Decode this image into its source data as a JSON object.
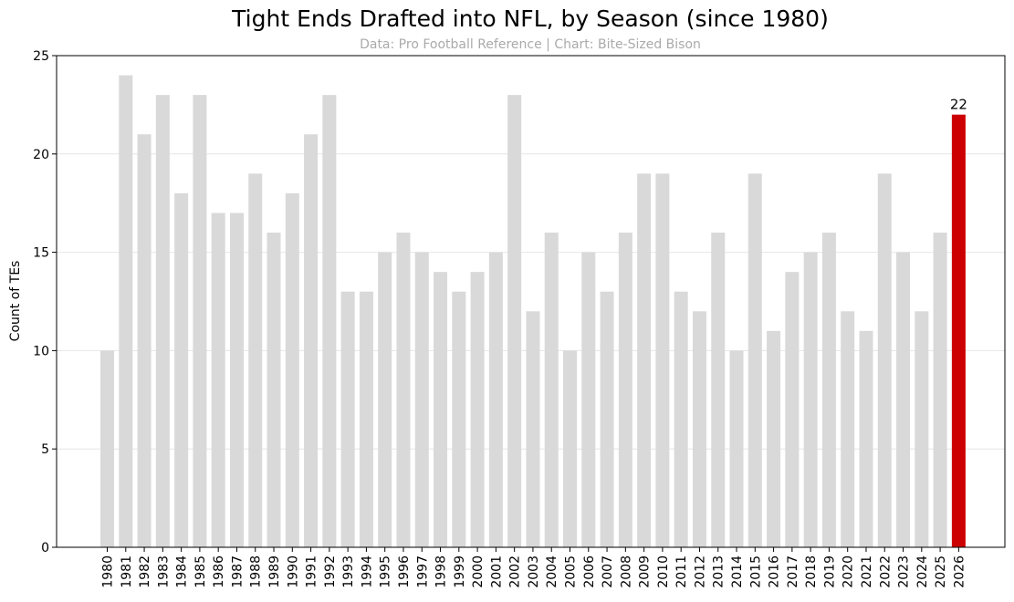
{
  "chart_data": {
    "type": "bar",
    "title": "Tight Ends Drafted into NFL, by Season (since 1980)",
    "subtitle": "Data: Pro Football Reference | Chart: Bite-Sized Bison",
    "xlabel": "",
    "ylabel": "Count of TEs",
    "categories": [
      "1980",
      "1981",
      "1982",
      "1983",
      "1984",
      "1985",
      "1986",
      "1987",
      "1988",
      "1989",
      "1990",
      "1991",
      "1992",
      "1993",
      "1994",
      "1995",
      "1996",
      "1997",
      "1998",
      "1999",
      "2000",
      "2001",
      "2002",
      "2003",
      "2004",
      "2005",
      "2006",
      "2007",
      "2008",
      "2009",
      "2010",
      "2011",
      "2012",
      "2013",
      "2014",
      "2015",
      "2016",
      "2017",
      "2018",
      "2019",
      "2020",
      "2021",
      "2022",
      "2023",
      "2024",
      "2025",
      "2026"
    ],
    "values": [
      10,
      24,
      21,
      23,
      18,
      23,
      17,
      17,
      19,
      16,
      18,
      21,
      23,
      13,
      13,
      15,
      16,
      15,
      14,
      13,
      14,
      15,
      23,
      12,
      16,
      10,
      15,
      13,
      16,
      19,
      19,
      13,
      12,
      16,
      10,
      19,
      11,
      14,
      15,
      16,
      12,
      11,
      19,
      15,
      12,
      16,
      22
    ],
    "ylim": [
      0,
      25
    ],
    "yticks": [
      0,
      5,
      10,
      15,
      20,
      25
    ],
    "grid": "horizontal",
    "highlight": {
      "category": "2026",
      "label": "22"
    },
    "colors": {
      "bar": "#d9d9d9",
      "highlight": "#cc0000",
      "grid": "#e6e6e6"
    }
  }
}
